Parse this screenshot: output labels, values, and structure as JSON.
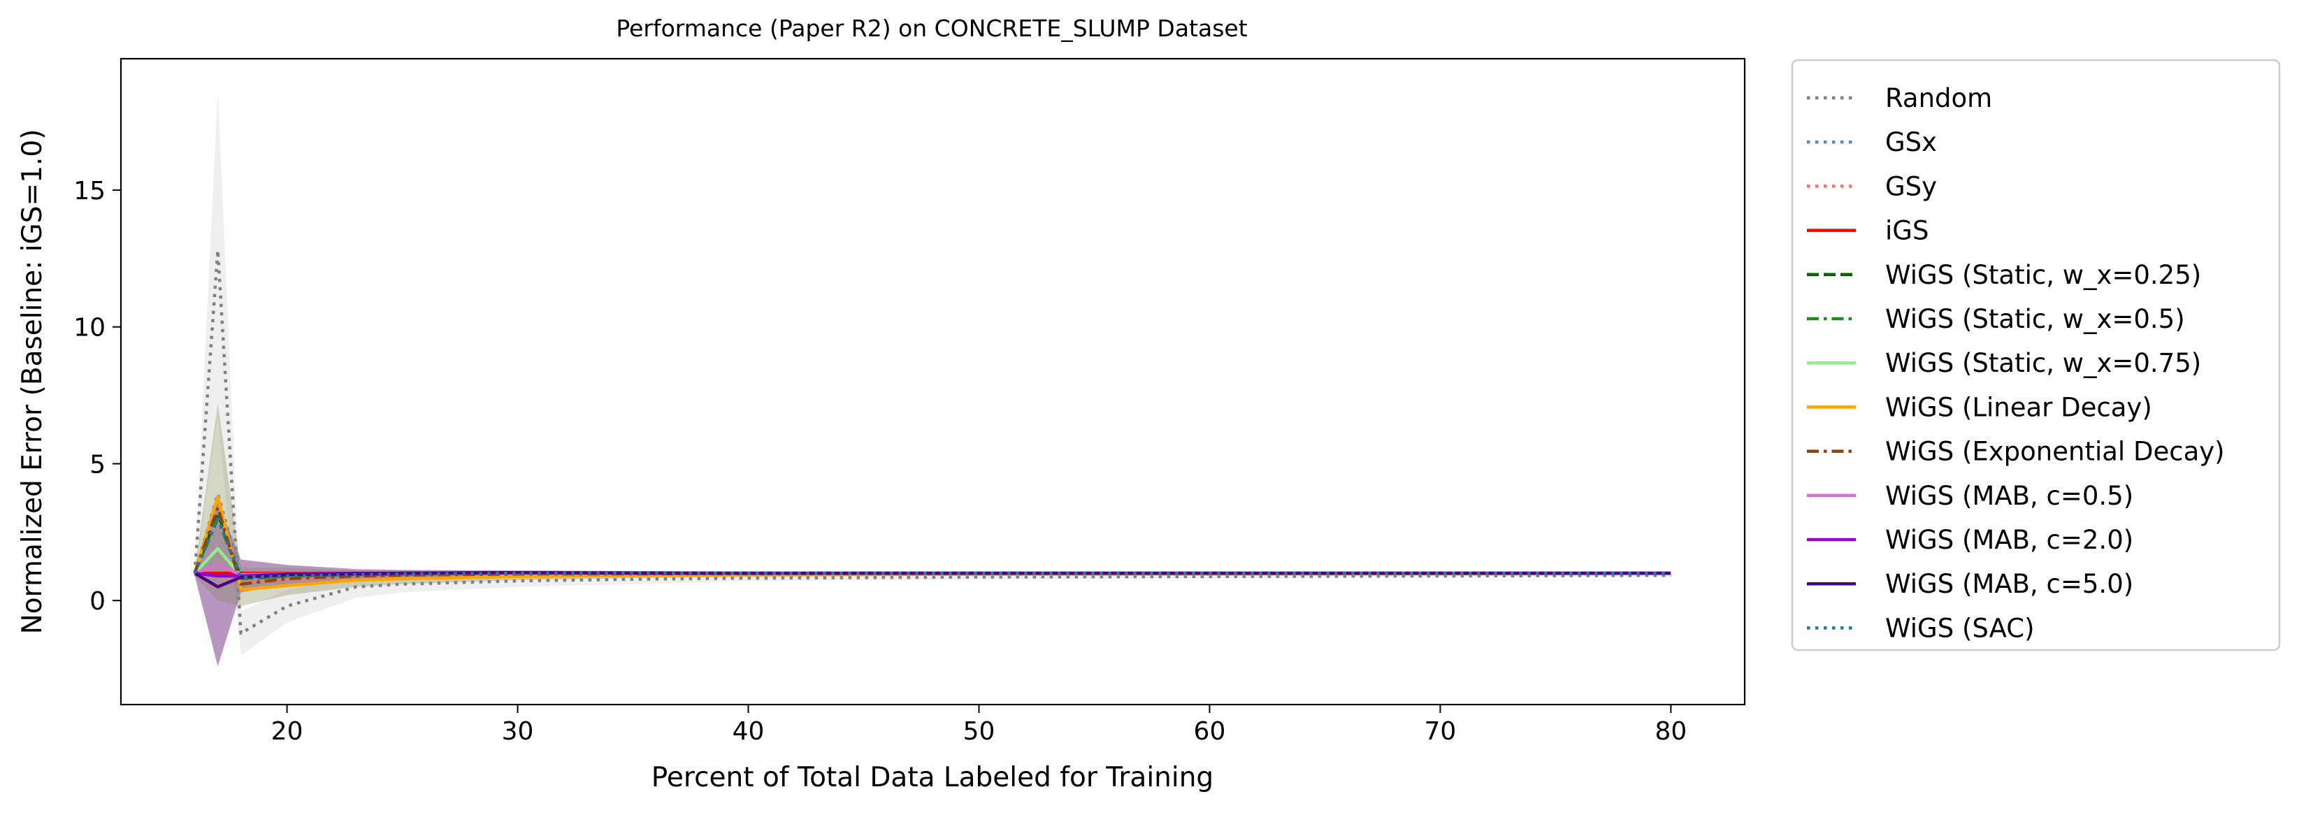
{
  "chart_data": {
    "type": "line",
    "title": "Performance (Paper R2) on CONCRETE_SLUMP Dataset",
    "xlabel": "Percent of Total Data Labeled for Training",
    "ylabel": "Normalized Error (Baseline: iGS=1.0)",
    "xlim": [
      12.8,
      83.2
    ],
    "ylim": [
      -3.8,
      19.8
    ],
    "xticks": [
      20,
      30,
      40,
      50,
      60,
      70,
      80
    ],
    "yticks": [
      0,
      5,
      10,
      15
    ],
    "grid": false,
    "legend_position": "outside-right",
    "x": [
      16,
      17,
      18,
      20,
      23,
      25,
      30,
      35,
      40,
      50,
      60,
      70,
      80
    ],
    "bands": [
      {
        "series": "Random",
        "color": "#b0b0b0",
        "opacity": 0.2,
        "lower": [
          0.8,
          6.8,
          -2.0,
          -0.8,
          0.1,
          0.3,
          0.5,
          0.6,
          0.7,
          0.78,
          0.82,
          0.85,
          0.88
        ],
        "upper": [
          1.2,
          18.6,
          -0.4,
          0.4,
          0.9,
          1.0,
          1.05,
          1.05,
          1.05,
          1.02,
          1.0,
          1.0,
          0.98
        ]
      },
      {
        "series": "WiGS (MAB, c=5.0)",
        "color": "#7b3f8c",
        "opacity": 0.55,
        "lower": [
          0.9,
          -2.4,
          0.3,
          0.6,
          0.8,
          0.85,
          0.9,
          0.92,
          0.94,
          0.96,
          0.97,
          0.98,
          0.99
        ],
        "upper": [
          1.1,
          3.6,
          1.5,
          1.3,
          1.15,
          1.12,
          1.1,
          1.08,
          1.06,
          1.05,
          1.04,
          1.03,
          1.02
        ]
      },
      {
        "series": "WiGS (Linear Decay)",
        "color": "#8a8a5a",
        "opacity": 0.35,
        "lower": [
          0.9,
          0.0,
          -0.2,
          0.2,
          0.5,
          0.6,
          0.75,
          0.82,
          0.87,
          0.92,
          0.95,
          0.97,
          0.99
        ],
        "upper": [
          1.1,
          7.2,
          1.2,
          1.2,
          1.1,
          1.08,
          1.05,
          1.04,
          1.03,
          1.02,
          1.01,
          1.01,
          1.0
        ]
      }
    ],
    "series": [
      {
        "name": "Random",
        "color": "#808080",
        "dash": "dotted",
        "width": 4.5,
        "values": [
          1.0,
          12.8,
          -1.2,
          -0.2,
          0.5,
          0.6,
          0.72,
          0.78,
          0.82,
          0.86,
          0.88,
          0.9,
          0.92
        ]
      },
      {
        "name": "GSx",
        "color": "#4a90d9",
        "dash": "dotted",
        "width": 4.5,
        "values": [
          1.0,
          3.9,
          0.9,
          0.85,
          0.88,
          0.9,
          0.93,
          0.95,
          0.96,
          0.97,
          0.98,
          0.99,
          1.0
        ]
      },
      {
        "name": "GSy",
        "color": "#ff6f61",
        "dash": "dotted",
        "width": 4.5,
        "values": [
          1.0,
          3.6,
          0.7,
          0.75,
          0.85,
          0.88,
          0.92,
          0.94,
          0.96,
          0.97,
          0.98,
          0.99,
          1.0
        ]
      },
      {
        "name": "iGS",
        "color": "#ff0000",
        "dash": "solid",
        "width": 4.5,
        "values": [
          1.0,
          1.0,
          1.0,
          1.0,
          1.0,
          1.0,
          1.0,
          1.0,
          1.0,
          1.0,
          1.0,
          1.0,
          1.0
        ]
      },
      {
        "name": "WiGS (Static, w_x=0.25)",
        "color": "#006400",
        "dash": "dashed",
        "width": 4.5,
        "values": [
          1.0,
          3.2,
          0.8,
          0.9,
          0.95,
          0.97,
          1.0,
          1.0,
          1.0,
          1.0,
          1.0,
          1.0,
          1.0
        ]
      },
      {
        "name": "WiGS (Static, w_x=0.5)",
        "color": "#228b22",
        "dash": "dashdot",
        "width": 4.5,
        "values": [
          1.0,
          3.0,
          0.8,
          0.9,
          0.95,
          0.97,
          1.0,
          1.0,
          1.0,
          1.0,
          1.0,
          1.0,
          1.0
        ]
      },
      {
        "name": "WiGS (Static, w_x=0.75)",
        "color": "#90ee90",
        "dash": "solid",
        "width": 4.5,
        "values": [
          1.0,
          1.9,
          0.9,
          0.95,
          0.98,
          0.99,
          1.0,
          1.0,
          1.0,
          1.0,
          1.0,
          1.0,
          1.0
        ]
      },
      {
        "name": "WiGS (Linear Decay)",
        "color": "#ffa500",
        "dash": "solid",
        "width": 4.5,
        "values": [
          1.0,
          3.8,
          0.4,
          0.55,
          0.75,
          0.8,
          0.88,
          0.92,
          0.94,
          0.96,
          0.97,
          0.98,
          1.0
        ]
      },
      {
        "name": "WiGS (Exponential Decay)",
        "color": "#8b4513",
        "dash": "dashdot",
        "width": 4.5,
        "values": [
          1.0,
          3.4,
          0.6,
          0.8,
          0.9,
          0.93,
          0.97,
          0.98,
          0.99,
          1.0,
          1.0,
          1.0,
          1.0
        ]
      },
      {
        "name": "WiGS (MAB, c=0.5)",
        "color": "#da70d6",
        "dash": "solid",
        "width": 4.5,
        "values": [
          1.0,
          1.3,
          0.95,
          0.98,
          1.0,
          1.0,
          1.0,
          1.0,
          1.0,
          1.0,
          1.0,
          1.0,
          1.0
        ]
      },
      {
        "name": "WiGS (MAB, c=2.0)",
        "color": "#9400d3",
        "dash": "solid",
        "width": 4.5,
        "values": [
          1.0,
          0.9,
          0.9,
          0.97,
          1.0,
          1.0,
          1.02,
          1.0,
          1.0,
          1.0,
          1.0,
          1.0,
          1.0
        ]
      },
      {
        "name": "WiGS (MAB, c=5.0)",
        "color": "#4b0082",
        "dash": "solid",
        "width": 4.5,
        "values": [
          1.0,
          0.5,
          0.85,
          0.95,
          0.98,
          1.0,
          1.02,
          1.01,
          1.0,
          1.0,
          1.0,
          1.0,
          1.0
        ]
      },
      {
        "name": "WiGS (SAC)",
        "color": "#1f77b4",
        "dash": "dotted",
        "width": 4.5,
        "values": [
          1.0,
          3.0,
          0.85,
          0.9,
          0.95,
          0.97,
          1.0,
          1.0,
          1.0,
          1.0,
          1.0,
          1.0,
          1.0
        ]
      }
    ]
  }
}
